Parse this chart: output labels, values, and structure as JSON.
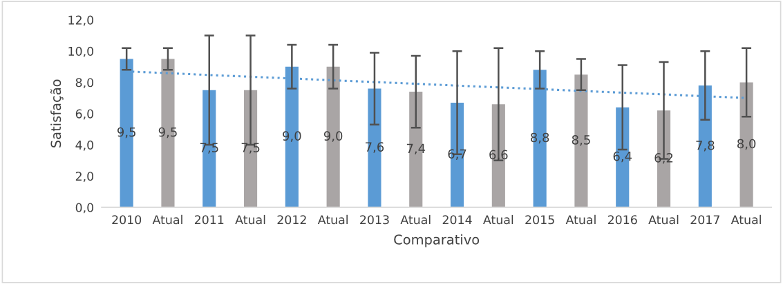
{
  "chart_data": {
    "type": "bar",
    "xlabel": "Comparativo",
    "ylabel": "Satisfação",
    "categories": [
      "2010",
      "Atual",
      "2011",
      "Atual",
      "2012",
      "Atual",
      "2013",
      "Atual",
      "2014",
      "Atual",
      "2015",
      "Atual",
      "2016",
      "Atual",
      "2017",
      "Atual"
    ],
    "ylim": [
      0,
      12
    ],
    "yticks": [
      {
        "value": 0,
        "label": "0,0"
      },
      {
        "value": 2,
        "label": "2,0"
      },
      {
        "value": 4,
        "label": "4,0"
      },
      {
        "value": 6,
        "label": "6,0"
      },
      {
        "value": 8,
        "label": "8,0"
      },
      {
        "value": 10,
        "label": "10,0"
      },
      {
        "value": 12,
        "label": "12,0"
      }
    ],
    "grid": false,
    "series": [
      {
        "values": [
          9.5,
          9.5,
          7.5,
          7.5,
          9.0,
          9.0,
          7.6,
          7.4,
          6.7,
          6.6,
          8.8,
          8.5,
          6.4,
          6.2,
          7.8,
          8.0
        ],
        "colors": [
          "#5b9bd5",
          "#a9a5a5",
          "#5b9bd5",
          "#a9a5a5",
          "#5b9bd5",
          "#a9a5a5",
          "#5b9bd5",
          "#a9a5a5",
          "#5b9bd5",
          "#a9a5a5",
          "#5b9bd5",
          "#a9a5a5",
          "#5b9bd5",
          "#a9a5a5",
          "#5b9bd5",
          "#a9a5a5"
        ],
        "errors": [
          0.7,
          0.7,
          3.5,
          3.5,
          1.4,
          1.4,
          2.3,
          2.3,
          3.3,
          3.6,
          1.2,
          1.0,
          2.7,
          3.1,
          2.2,
          2.2
        ],
        "value_labels": [
          "9,5",
          "9,5",
          "7,5",
          "7,5",
          "9,0",
          "9,0",
          "7,6",
          "7,4",
          "6,7",
          "6,6",
          "8,8",
          "8,5",
          "6,4",
          "6,2",
          "7,8",
          "8,0"
        ]
      },
      {
        "type": "line",
        "color": "#5b9bd5",
        "line_style": "dotted",
        "marker": "none",
        "values": [
          8.7,
          8.59,
          8.47,
          8.36,
          8.25,
          8.13,
          8.02,
          7.91,
          7.79,
          7.68,
          7.57,
          7.45,
          7.34,
          7.23,
          7.11,
          7.0
        ]
      }
    ]
  }
}
